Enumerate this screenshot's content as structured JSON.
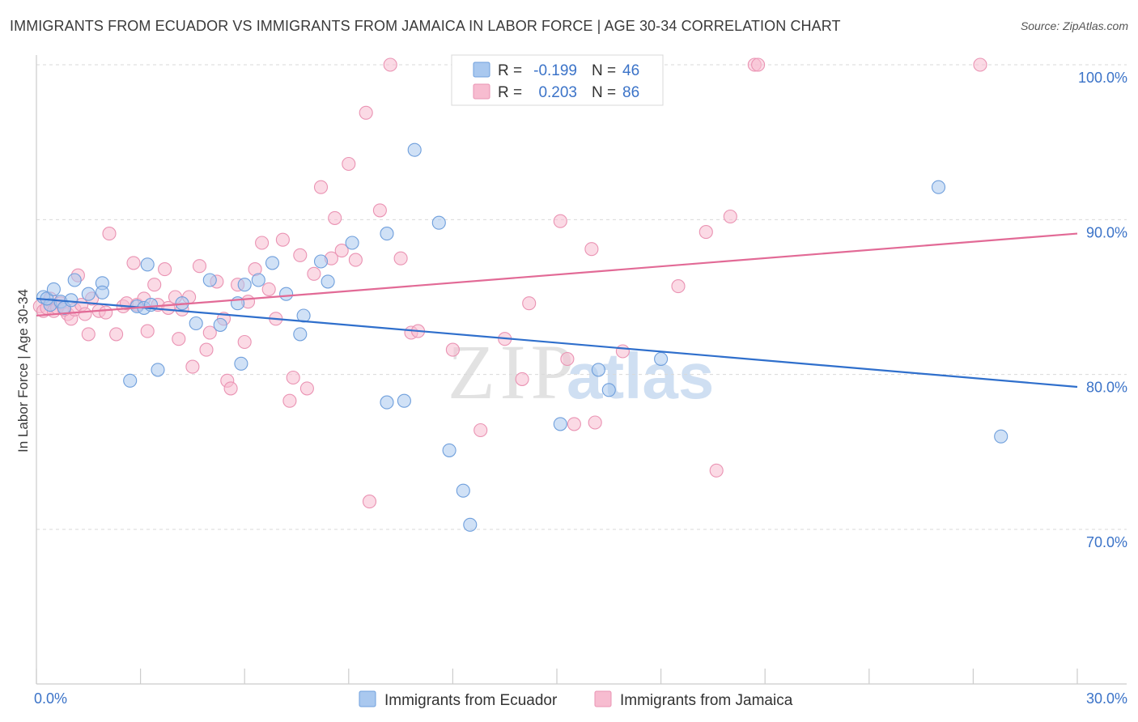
{
  "title": "IMMIGRANTS FROM ECUADOR VS IMMIGRANTS FROM JAMAICA IN LABOR FORCE | AGE 30-34 CORRELATION CHART",
  "source": "Source: ZipAtlas.com",
  "watermark": {
    "zip": "ZIP",
    "atlas": "atlas"
  },
  "colors": {
    "ecuador_fill": "#a9c8ef",
    "ecuador_stroke": "#6f9fdc",
    "ecuador_line": "#2f6fcc",
    "jamaica_fill": "#f7bcd0",
    "jamaica_stroke": "#ea93b3",
    "jamaica_line": "#e26a96",
    "tick_label": "#3b73c8",
    "grid": "#d9d9d9"
  },
  "legend_box": {
    "rows": [
      {
        "series": "ecuador",
        "r_label": "R =",
        "r_value": "-0.199",
        "n_label": "N =",
        "n_value": "46"
      },
      {
        "series": "jamaica",
        "r_label": "R =",
        "r_value": "0.203",
        "n_label": "N =",
        "n_value": "86"
      }
    ]
  },
  "chart_data": {
    "type": "scatter",
    "title": "IMMIGRANTS FROM ECUADOR VS IMMIGRANTS FROM JAMAICA IN LABOR FORCE | AGE 30-34 CORRELATION CHART",
    "xlabel": "",
    "ylabel": "In Labor Force | Age 30-34",
    "xlim": [
      0,
      30
    ],
    "ylim": [
      60.5,
      101.5
    ],
    "x_tick_labels": [
      {
        "value": 0,
        "label": "0.0%"
      },
      {
        "value": 30,
        "label": "30.0%"
      }
    ],
    "y_tick_labels": [
      {
        "value": 100,
        "label": "100.0%"
      },
      {
        "value": 90,
        "label": "90.0%"
      },
      {
        "value": 80,
        "label": "80.0%"
      },
      {
        "value": 70,
        "label": "70.0%"
      }
    ],
    "y_gridlines": [
      100,
      90,
      80,
      70
    ],
    "grid": true,
    "legend_position": "bottom",
    "series": [
      {
        "name": "Immigrants from Ecuador",
        "key": "ecuador",
        "r": -0.199,
        "n": 46,
        "trend": {
          "x": [
            0,
            30
          ],
          "y": [
            84.9,
            79.2
          ]
        },
        "points": [
          [
            0.2,
            85.0
          ],
          [
            0.4,
            84.5
          ],
          [
            0.3,
            84.9
          ],
          [
            0.5,
            85.5
          ],
          [
            0.7,
            84.7
          ],
          [
            0.8,
            84.3
          ],
          [
            1.1,
            86.1
          ],
          [
            1.9,
            85.9
          ],
          [
            1.5,
            85.2
          ],
          [
            1.9,
            85.3
          ],
          [
            2.9,
            84.4
          ],
          [
            3.2,
            87.1
          ],
          [
            3.1,
            84.3
          ],
          [
            3.3,
            84.5
          ],
          [
            3.5,
            80.3
          ],
          [
            4.2,
            84.6
          ],
          [
            5.0,
            86.1
          ],
          [
            5.8,
            84.6
          ],
          [
            5.3,
            83.2
          ],
          [
            5.9,
            80.7
          ],
          [
            6.0,
            85.8
          ],
          [
            6.4,
            86.1
          ],
          [
            6.8,
            87.2
          ],
          [
            7.2,
            85.2
          ],
          [
            7.7,
            83.8
          ],
          [
            7.6,
            82.6
          ],
          [
            8.2,
            87.3
          ],
          [
            8.4,
            86.0
          ],
          [
            9.1,
            88.5
          ],
          [
            10.1,
            78.2
          ],
          [
            10.9,
            94.5
          ],
          [
            10.1,
            89.1
          ],
          [
            10.6,
            78.3
          ],
          [
            11.6,
            89.8
          ],
          [
            11.9,
            75.1
          ],
          [
            12.5,
            70.3
          ],
          [
            12.3,
            72.5
          ],
          [
            16.2,
            80.3
          ],
          [
            16.5,
            79.0
          ],
          [
            15.1,
            76.8
          ],
          [
            18.0,
            81.0
          ],
          [
            26.0,
            92.1
          ],
          [
            27.8,
            76.0
          ],
          [
            2.7,
            79.6
          ],
          [
            4.6,
            83.3
          ],
          [
            1.0,
            84.8
          ]
        ]
      },
      {
        "name": "Immigrants from Jamaica",
        "key": "jamaica",
        "r": 0.203,
        "n": 86,
        "trend": {
          "x": [
            0,
            30
          ],
          "y": [
            83.8,
            89.1
          ]
        },
        "points": [
          [
            0.1,
            84.4
          ],
          [
            0.2,
            84.1
          ],
          [
            0.3,
            84.3
          ],
          [
            0.4,
            84.9
          ],
          [
            0.5,
            84.1
          ],
          [
            0.6,
            84.3
          ],
          [
            0.7,
            84.6
          ],
          [
            0.9,
            83.9
          ],
          [
            1.0,
            83.6
          ],
          [
            1.1,
            84.2
          ],
          [
            1.2,
            86.4
          ],
          [
            1.3,
            84.5
          ],
          [
            1.4,
            83.9
          ],
          [
            1.5,
            82.6
          ],
          [
            1.6,
            84.9
          ],
          [
            1.8,
            84.1
          ],
          [
            2.0,
            84.0
          ],
          [
            2.1,
            89.1
          ],
          [
            2.3,
            82.6
          ],
          [
            2.5,
            84.4
          ],
          [
            2.6,
            84.6
          ],
          [
            2.8,
            87.2
          ],
          [
            2.9,
            84.5
          ],
          [
            3.1,
            84.9
          ],
          [
            3.2,
            82.8
          ],
          [
            3.4,
            85.8
          ],
          [
            3.5,
            84.5
          ],
          [
            3.7,
            86.8
          ],
          [
            3.8,
            84.3
          ],
          [
            4.0,
            85.0
          ],
          [
            4.1,
            82.3
          ],
          [
            4.2,
            84.2
          ],
          [
            4.4,
            85.0
          ],
          [
            4.5,
            80.5
          ],
          [
            4.7,
            87.0
          ],
          [
            4.9,
            81.6
          ],
          [
            5.0,
            82.7
          ],
          [
            5.2,
            86.0
          ],
          [
            5.4,
            83.6
          ],
          [
            5.5,
            79.6
          ],
          [
            5.6,
            79.1
          ],
          [
            5.8,
            85.8
          ],
          [
            6.0,
            82.1
          ],
          [
            6.1,
            84.7
          ],
          [
            6.3,
            86.8
          ],
          [
            6.5,
            88.5
          ],
          [
            6.7,
            85.5
          ],
          [
            6.9,
            83.6
          ],
          [
            7.1,
            88.7
          ],
          [
            7.3,
            78.3
          ],
          [
            7.4,
            79.8
          ],
          [
            7.6,
            87.7
          ],
          [
            7.8,
            79.1
          ],
          [
            8.0,
            86.5
          ],
          [
            8.2,
            92.1
          ],
          [
            8.5,
            87.5
          ],
          [
            8.6,
            90.1
          ],
          [
            8.8,
            88.0
          ],
          [
            9.0,
            93.6
          ],
          [
            9.2,
            87.4
          ],
          [
            9.5,
            96.9
          ],
          [
            9.6,
            71.8
          ],
          [
            9.9,
            90.6
          ],
          [
            10.2,
            100.0
          ],
          [
            10.5,
            87.5
          ],
          [
            10.8,
            82.7
          ],
          [
            11.0,
            82.8
          ],
          [
            12.0,
            81.6
          ],
          [
            12.8,
            76.4
          ],
          [
            13.5,
            82.3
          ],
          [
            14.0,
            79.7
          ],
          [
            14.2,
            84.6
          ],
          [
            15.1,
            89.9
          ],
          [
            15.3,
            81.0
          ],
          [
            15.5,
            76.8
          ],
          [
            16.0,
            88.1
          ],
          [
            16.1,
            76.9
          ],
          [
            16.9,
            81.5
          ],
          [
            18.5,
            85.7
          ],
          [
            19.3,
            89.2
          ],
          [
            19.6,
            73.8
          ],
          [
            20.0,
            90.2
          ],
          [
            20.7,
            100.0
          ],
          [
            20.8,
            100.0
          ],
          [
            27.2,
            100.0
          ],
          [
            0.8,
            84.2
          ]
        ]
      }
    ]
  },
  "bottom_legend": [
    {
      "series": "ecuador",
      "label": "Immigrants from Ecuador"
    },
    {
      "series": "jamaica",
      "label": "Immigrants from Jamaica"
    }
  ]
}
